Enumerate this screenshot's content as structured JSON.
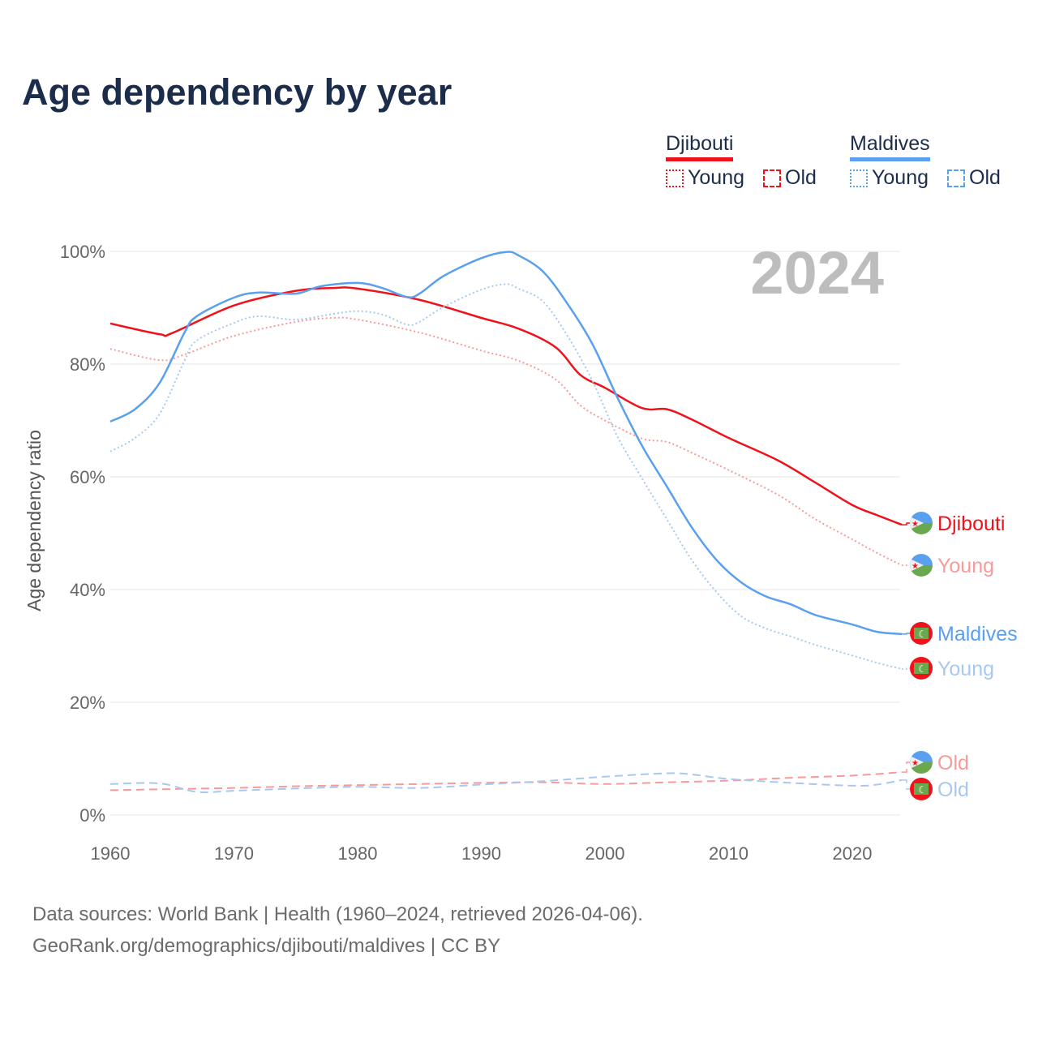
{
  "title": "Age dependency by year",
  "legend": {
    "countries": [
      {
        "name": "Djibouti",
        "color": "#f0121b",
        "items": [
          "Young",
          "Old"
        ]
      },
      {
        "name": "Maldives",
        "color": "#5aa0ee",
        "items": [
          "Young",
          "Old"
        ]
      }
    ]
  },
  "year_watermark": "2024",
  "footer": {
    "line1": "Data sources: World Bank | Health (1960–2024, retrieved 2026-04-06).",
    "line2": "GeoRank.org/demographics/djibouti/maldives | CC BY"
  },
  "chart_data": {
    "type": "line",
    "title": "Age dependency by year",
    "xlabel": "",
    "ylabel": "Age dependency ratio",
    "xlim": [
      1960,
      2024
    ],
    "ylim": [
      0,
      100
    ],
    "x_ticks": [
      "1960",
      "1970",
      "1980",
      "1990",
      "2000",
      "2010",
      "2020"
    ],
    "y_ticks": [
      "0%",
      "20%",
      "40%",
      "60%",
      "80%",
      "100%"
    ],
    "grid": true,
    "series": [
      {
        "name": "Djibouti",
        "end_label": "Djibouti",
        "color": "#f0121b",
        "dash": "solid",
        "flag": "djibouti",
        "points": [
          [
            1960,
            87.2
          ],
          [
            1964,
            85.3
          ],
          [
            1965,
            85.5
          ],
          [
            1970,
            90.4
          ],
          [
            1975,
            93
          ],
          [
            1978,
            93.5
          ],
          [
            1980,
            93.4
          ],
          [
            1985,
            91.4
          ],
          [
            1990,
            88.2
          ],
          [
            1993,
            86.3
          ],
          [
            1996,
            83
          ],
          [
            1998,
            78.1
          ],
          [
            2000,
            75.8
          ],
          [
            2003,
            72.2
          ],
          [
            2005,
            72
          ],
          [
            2007,
            70.2
          ],
          [
            2010,
            66.9
          ],
          [
            2014,
            62.9
          ],
          [
            2017,
            59
          ],
          [
            2020,
            55
          ],
          [
            2022,
            53.2
          ],
          [
            2024,
            51.5
          ]
        ]
      },
      {
        "name": "Djibouti Young",
        "end_label": "Young",
        "color": "#f99a9a",
        "dash": "dotted",
        "flag": "djibouti",
        "points": [
          [
            1960,
            82.7
          ],
          [
            1964,
            80.7
          ],
          [
            1966,
            81.7
          ],
          [
            1970,
            85
          ],
          [
            1975,
            87.5
          ],
          [
            1978,
            88.2
          ],
          [
            1980,
            87.9
          ],
          [
            1985,
            85.6
          ],
          [
            1990,
            82.4
          ],
          [
            1993,
            80.6
          ],
          [
            1996,
            77.3
          ],
          [
            1998,
            72.7
          ],
          [
            2000,
            70
          ],
          [
            2003,
            66.8
          ],
          [
            2005,
            66.2
          ],
          [
            2007,
            64.3
          ],
          [
            2010,
            61.2
          ],
          [
            2014,
            56.8
          ],
          [
            2017,
            52.5
          ],
          [
            2020,
            48.9
          ],
          [
            2022,
            46.5
          ],
          [
            2024,
            44.3
          ]
        ]
      },
      {
        "name": "Maldives",
        "end_label": "Maldives",
        "color": "#5aa0ee",
        "dash": "solid",
        "flag": "maldives",
        "points": [
          [
            1960,
            69.8
          ],
          [
            1962,
            72
          ],
          [
            1964,
            76.7
          ],
          [
            1966,
            85.6
          ],
          [
            1967,
            88.5
          ],
          [
            1970,
            91.8
          ],
          [
            1972,
            92.7
          ],
          [
            1975,
            92.5
          ],
          [
            1977,
            93.8
          ],
          [
            1980,
            94.4
          ],
          [
            1982,
            93.5
          ],
          [
            1984,
            91.9
          ],
          [
            1985,
            92.5
          ],
          [
            1987,
            95.7
          ],
          [
            1990,
            98.8
          ],
          [
            1992,
            99.9
          ],
          [
            1993,
            99.3
          ],
          [
            1995,
            96.4
          ],
          [
            1997,
            90.6
          ],
          [
            1999,
            83.5
          ],
          [
            2001,
            74.1
          ],
          [
            2003,
            65.5
          ],
          [
            2005,
            58.3
          ],
          [
            2007,
            51.1
          ],
          [
            2009,
            45.3
          ],
          [
            2011,
            41.3
          ],
          [
            2013,
            38.8
          ],
          [
            2015,
            37.4
          ],
          [
            2017,
            35.5
          ],
          [
            2020,
            33.8
          ],
          [
            2022,
            32.5
          ],
          [
            2024,
            32.1
          ]
        ]
      },
      {
        "name": "Maldives Young",
        "end_label": "Young",
        "color": "#a7c9f0",
        "dash": "dotted",
        "flag": "maldives",
        "points": [
          [
            1960,
            64.5
          ],
          [
            1962,
            66.9
          ],
          [
            1964,
            71.2
          ],
          [
            1966,
            80.6
          ],
          [
            1967,
            84.2
          ],
          [
            1970,
            87.3
          ],
          [
            1972,
            88.5
          ],
          [
            1975,
            87.9
          ],
          [
            1978,
            88.9
          ],
          [
            1980,
            89.4
          ],
          [
            1982,
            88.8
          ],
          [
            1984,
            87
          ],
          [
            1985,
            87.5
          ],
          [
            1987,
            90.2
          ],
          [
            1990,
            93.2
          ],
          [
            1992,
            94.2
          ],
          [
            1993,
            93.4
          ],
          [
            1995,
            91.1
          ],
          [
            1997,
            84.9
          ],
          [
            1999,
            77
          ],
          [
            2001,
            67.2
          ],
          [
            2003,
            59.7
          ],
          [
            2005,
            52.5
          ],
          [
            2007,
            45.3
          ],
          [
            2009,
            39.6
          ],
          [
            2011,
            35.3
          ],
          [
            2013,
            33.1
          ],
          [
            2015,
            31.7
          ],
          [
            2017,
            30.2
          ],
          [
            2020,
            28.3
          ],
          [
            2022,
            27
          ],
          [
            2024,
            25.9
          ]
        ]
      },
      {
        "name": "Djibouti Old",
        "end_label": "Old",
        "color": "#f99a9a",
        "dash": "dashed",
        "flag": "djibouti",
        "points": [
          [
            1960,
            4.4
          ],
          [
            1965,
            4.6
          ],
          [
            1970,
            4.8
          ],
          [
            1975,
            5.1
          ],
          [
            1980,
            5.3
          ],
          [
            1985,
            5.5
          ],
          [
            1990,
            5.7
          ],
          [
            1995,
            5.8
          ],
          [
            2000,
            5.5
          ],
          [
            2005,
            5.8
          ],
          [
            2010,
            6.1
          ],
          [
            2015,
            6.6
          ],
          [
            2020,
            7
          ],
          [
            2024,
            7.6
          ]
        ]
      },
      {
        "name": "Maldives Old",
        "end_label": "Old",
        "color": "#a7c9f0",
        "dash": "dashed",
        "flag": "maldives",
        "points": [
          [
            1960,
            5.5
          ],
          [
            1964,
            5.6
          ],
          [
            1967,
            4.1
          ],
          [
            1970,
            4.3
          ],
          [
            1975,
            4.7
          ],
          [
            1980,
            5
          ],
          [
            1985,
            4.8
          ],
          [
            1990,
            5.4
          ],
          [
            1995,
            6
          ],
          [
            2000,
            6.8
          ],
          [
            2005,
            7.4
          ],
          [
            2007,
            7.2
          ],
          [
            2010,
            6.4
          ],
          [
            2015,
            5.7
          ],
          [
            2020,
            5.2
          ],
          [
            2022,
            5.4
          ],
          [
            2024,
            6.2
          ]
        ]
      }
    ]
  }
}
